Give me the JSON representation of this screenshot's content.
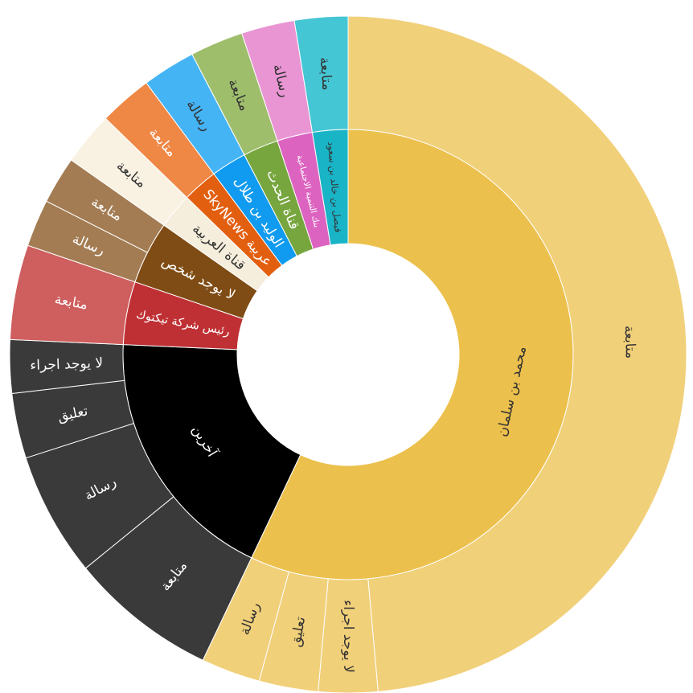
{
  "chart_data": {
    "type": "sunburst",
    "title": "",
    "levels": [
      "inner",
      "outer"
    ],
    "total_degrees": 360,
    "start_angle_deg": 0,
    "direction": "clockwise",
    "colors": {
      "root_label_dark": "#333333",
      "root_label_light": "#ffffff"
    },
    "nodes": [
      {
        "label": "محمد بن سلمان",
        "value": 202,
        "color": "#ECC04C",
        "label_color": "#333333",
        "children": [
          {
            "label": "متابعة",
            "value": 172,
            "color": "#F1D07A",
            "label_color": "#333333"
          },
          {
            "label": "لا يوجد اجراء",
            "value": 10,
            "color": "#F1D07A",
            "label_color": "#333333"
          },
          {
            "label": "تعليق",
            "value": 10,
            "color": "#F1D07A",
            "label_color": "#333333"
          },
          {
            "label": "رسالة",
            "value": 10,
            "color": "#F1D07A",
            "label_color": "#333333"
          }
        ]
      },
      {
        "label": "آخرين",
        "value": 66,
        "color": "#000000",
        "label_color": "#ffffff",
        "children": [
          {
            "label": "متابعة",
            "value": 25,
            "color": "#3A3A3A",
            "label_color": "#ffffff"
          },
          {
            "label": "رسالة",
            "value": 21,
            "color": "#3A3A3A",
            "label_color": "#ffffff"
          },
          {
            "label": "تعليق",
            "value": 11,
            "color": "#3A3A3A",
            "label_color": "#ffffff"
          },
          {
            "label": "لا يوجد اجراء",
            "value": 9,
            "color": "#3A3A3A",
            "label_color": "#ffffff"
          }
        ]
      },
      {
        "label": "رئيس شركة تيكتوك",
        "value": 16,
        "color": "#BF3034",
        "label_color": "#ffffff",
        "children": [
          {
            "label": "متابعة",
            "value": 16,
            "color": "#CF5E5E",
            "label_color": "#ffffff"
          }
        ]
      },
      {
        "label": "لا يوجد شخص",
        "value": 16,
        "color": "#7F4C15",
        "label_color": "#ffffff",
        "children": [
          {
            "label": "رسالة",
            "value": 8,
            "color": "#A37C53",
            "label_color": "#ffffff"
          },
          {
            "label": "متابعة",
            "value": 8,
            "color": "#A37C53",
            "label_color": "#ffffff"
          }
        ]
      },
      {
        "label": "قناة العربية",
        "value": 9,
        "color": "#F6EEDC",
        "label_color": "#333333",
        "children": [
          {
            "label": "متابعة",
            "value": 9,
            "color": "#F9F1E2",
            "label_color": "#333333"
          }
        ]
      },
      {
        "label": "SkyNews عربية",
        "value": 9,
        "color": "#E35F10",
        "label_color": "#ffffff",
        "children": [
          {
            "label": "متابعة",
            "value": 9,
            "color": "#EF8745",
            "label_color": "#ffffff"
          }
        ]
      },
      {
        "label": "الوليد بن طلال",
        "value": 9,
        "color": "#109BF0",
        "label_color": "#ffffff",
        "children": [
          {
            "label": "رسالة",
            "value": 9,
            "color": "#45B4F5",
            "label_color": "#333333"
          }
        ]
      },
      {
        "label": "قناة الحدث",
        "value": 9,
        "color": "#77A63E",
        "label_color": "#ffffff",
        "children": [
          {
            "label": "متابعة",
            "value": 9,
            "color": "#9FBE6C",
            "label_color": "#333333"
          }
        ]
      },
      {
        "label": "بنك التنمية الاجتماعية",
        "value": 9,
        "color": "#DD63C0",
        "label_color": "#ffffff",
        "children": [
          {
            "label": "رسالة",
            "value": 9,
            "color": "#E995D4",
            "label_color": "#333333"
          }
        ]
      },
      {
        "label": "فيصل بن خالد بن سعود",
        "value": 9,
        "color": "#1AB4C7",
        "label_color": "#333333",
        "children": [
          {
            "label": "متابعة",
            "value": 9,
            "color": "#45C6D4",
            "label_color": "#333333"
          }
        ]
      }
    ]
  }
}
